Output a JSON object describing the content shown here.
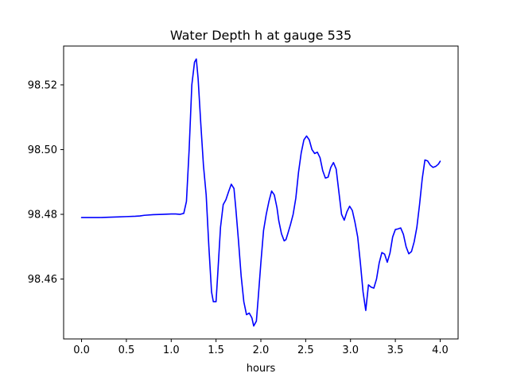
{
  "chart_data": {
    "type": "line",
    "title": "Water Depth h at gauge 535",
    "xlabel": "hours",
    "ylabel": "",
    "xlim": [
      -0.2,
      4.2
    ],
    "ylim": [
      98.4415,
      98.532
    ],
    "x_ticks": [
      {
        "value": 0.0,
        "label": "0.0"
      },
      {
        "value": 0.5,
        "label": "0.5"
      },
      {
        "value": 1.0,
        "label": "1.0"
      },
      {
        "value": 1.5,
        "label": "1.5"
      },
      {
        "value": 2.0,
        "label": "2.0"
      },
      {
        "value": 2.5,
        "label": "2.5"
      },
      {
        "value": 3.0,
        "label": "3.0"
      },
      {
        "value": 3.5,
        "label": "3.5"
      },
      {
        "value": 4.0,
        "label": "4.0"
      }
    ],
    "y_ticks": [
      {
        "value": 98.46,
        "label": "98.46"
      },
      {
        "value": 98.48,
        "label": "98.48"
      },
      {
        "value": 98.5,
        "label": "98.50"
      },
      {
        "value": 98.52,
        "label": "98.52"
      }
    ],
    "grid": false,
    "series": [
      {
        "color": "#0000ff",
        "x": [
          0.0,
          0.1,
          0.2,
          0.3,
          0.4,
          0.5,
          0.6,
          0.65,
          0.7,
          0.8,
          0.9,
          1.0,
          1.05,
          1.1,
          1.14,
          1.17,
          1.2,
          1.23,
          1.26,
          1.28,
          1.3,
          1.33,
          1.36,
          1.39,
          1.42,
          1.45,
          1.47,
          1.5,
          1.52,
          1.55,
          1.58,
          1.61,
          1.64,
          1.67,
          1.7,
          1.72,
          1.75,
          1.78,
          1.81,
          1.84,
          1.87,
          1.9,
          1.92,
          1.95,
          1.97,
          2.0,
          2.03,
          2.06,
          2.09,
          2.12,
          2.15,
          2.18,
          2.2,
          2.23,
          2.26,
          2.28,
          2.3,
          2.33,
          2.36,
          2.39,
          2.42,
          2.45,
          2.48,
          2.51,
          2.54,
          2.57,
          2.6,
          2.63,
          2.66,
          2.69,
          2.72,
          2.75,
          2.78,
          2.81,
          2.84,
          2.87,
          2.9,
          2.93,
          2.96,
          2.99,
          3.02,
          3.05,
          3.08,
          3.11,
          3.14,
          3.17,
          3.2,
          3.23,
          3.26,
          3.29,
          3.32,
          3.35,
          3.38,
          3.41,
          3.44,
          3.47,
          3.5,
          3.53,
          3.56,
          3.59,
          3.62,
          3.65,
          3.68,
          3.71,
          3.74,
          3.77,
          3.8,
          3.83,
          3.86,
          3.89,
          3.92,
          3.95,
          3.98,
          4.0
        ],
        "y": [
          98.479,
          98.479,
          98.479,
          98.4791,
          98.4792,
          98.4793,
          98.4794,
          98.4795,
          98.4797,
          98.4799,
          98.48,
          98.4801,
          98.4801,
          98.48,
          98.4803,
          98.484,
          98.5,
          98.52,
          98.527,
          98.528,
          98.522,
          98.508,
          98.495,
          98.486,
          98.47,
          98.456,
          98.453,
          98.453,
          98.462,
          98.476,
          98.483,
          98.4845,
          98.487,
          98.4893,
          98.488,
          98.482,
          98.472,
          98.461,
          98.453,
          98.449,
          98.4495,
          98.448,
          98.4455,
          98.447,
          98.454,
          98.465,
          98.475,
          98.48,
          98.484,
          98.4872,
          98.486,
          98.482,
          98.478,
          98.474,
          98.4718,
          98.4722,
          98.474,
          98.4768,
          98.48,
          98.485,
          98.493,
          98.499,
          98.503,
          98.5042,
          98.503,
          98.5,
          98.4988,
          98.4992,
          98.4975,
          98.4935,
          98.4912,
          98.4915,
          98.4945,
          98.496,
          98.494,
          98.487,
          98.48,
          98.4782,
          98.4808,
          98.4825,
          98.4812,
          98.4775,
          98.473,
          98.465,
          98.456,
          98.4503,
          98.4582,
          98.4575,
          98.4572,
          98.46,
          98.465,
          98.4682,
          98.4677,
          98.4652,
          98.468,
          98.473,
          98.4753,
          98.4755,
          98.4758,
          98.4738,
          98.47,
          98.4678,
          98.4685,
          98.4715,
          98.476,
          98.483,
          98.491,
          98.4968,
          98.4965,
          98.4952,
          98.4945,
          98.4948,
          98.4955,
          98.4964
        ]
      }
    ]
  }
}
